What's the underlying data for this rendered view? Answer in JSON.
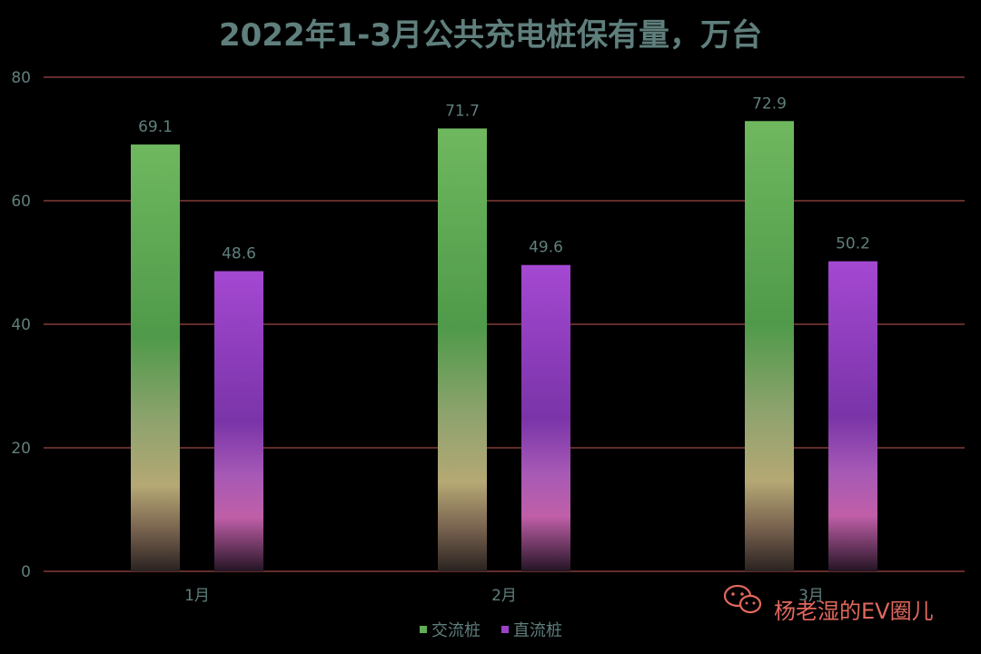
{
  "chart_data": {
    "type": "bar",
    "title": "2022年1-3月公共充电桩保有量，万台",
    "categories": [
      "1月",
      "2月",
      "3月"
    ],
    "series": [
      {
        "name": "交流桩",
        "values": [
          69.1,
          71.7,
          72.9
        ],
        "color": "#5fae57"
      },
      {
        "name": "直流桩",
        "values": [
          48.6,
          49.6,
          50.2
        ],
        "color": "#9b42c8"
      }
    ],
    "ylim": [
      0,
      80
    ],
    "yticks": [
      0,
      20,
      40,
      60,
      80
    ],
    "grid": true,
    "grid_color": "#c45a56",
    "legend_position": "bottom"
  },
  "watermark": {
    "text": "杨老湿的EV圈儿",
    "icon": "wechat-icon",
    "color": "#e0685e"
  }
}
